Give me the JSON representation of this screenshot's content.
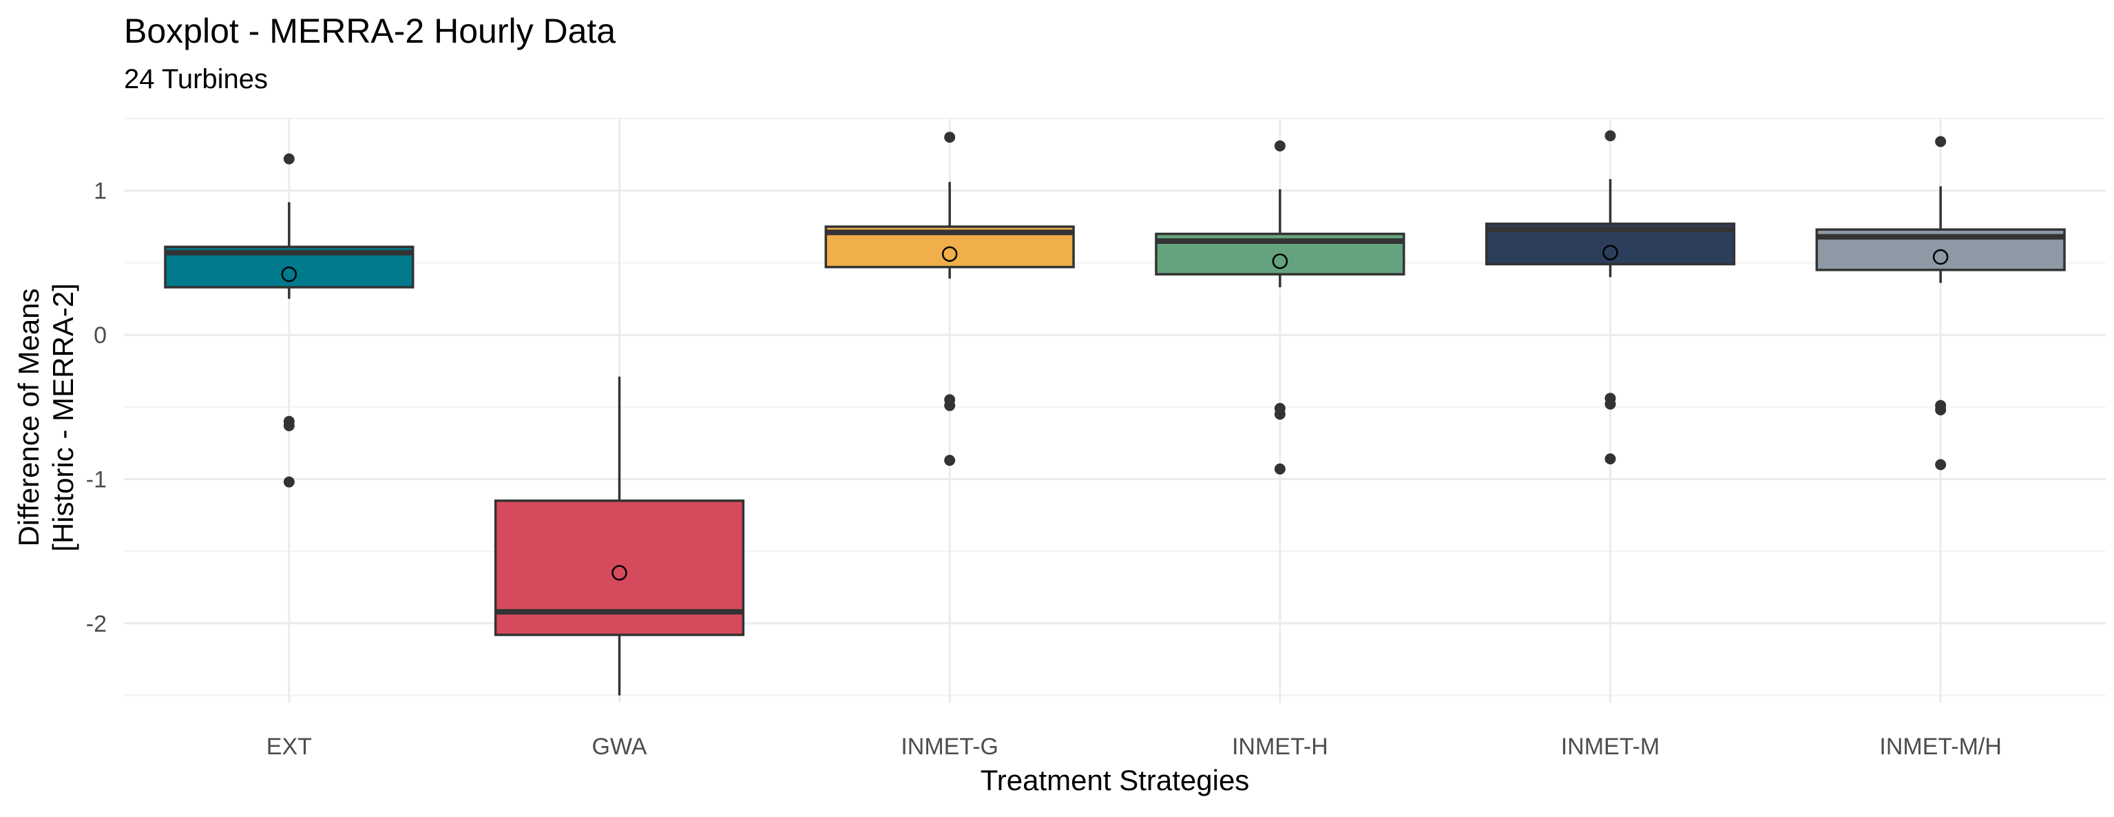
{
  "chart_data": {
    "type": "boxplot",
    "title": "Boxplot - MERRA-2 Hourly Data",
    "subtitle": "24 Turbines",
    "xlabel": "Treatment Strategies",
    "ylabel_lines": [
      "Difference of Means",
      "[Historic - MERRA-2]"
    ],
    "ylim": [
      -2.55,
      1.5
    ],
    "y_ticks": [
      1,
      0,
      -1,
      -2
    ],
    "y_tick_labels": [
      "1",
      "0",
      "-1",
      "-2"
    ],
    "grid": true,
    "legend": "none",
    "categories": [
      "EXT",
      "GWA",
      "INMET-G",
      "INMET-H",
      "INMET-M",
      "INMET-M/H"
    ],
    "series": [
      {
        "category": "EXT",
        "color": "#007A8C",
        "whisker_low": 0.25,
        "q1": 0.33,
        "median": 0.57,
        "q3": 0.61,
        "whisker_high": 0.92,
        "mean": 0.42,
        "outliers": [
          1.22,
          -0.6,
          -0.63,
          -1.02
        ]
      },
      {
        "category": "GWA",
        "color": "#D64A5E",
        "whisker_low": -2.5,
        "q1": -2.08,
        "median": -1.92,
        "q3": -1.15,
        "whisker_high": -0.29,
        "mean": -1.65,
        "outliers": []
      },
      {
        "category": "INMET-G",
        "color": "#F0AF4B",
        "whisker_low": 0.39,
        "q1": 0.47,
        "median": 0.71,
        "q3": 0.75,
        "whisker_high": 1.06,
        "mean": 0.56,
        "outliers": [
          1.37,
          -0.45,
          -0.49,
          -0.87
        ]
      },
      {
        "category": "INMET-H",
        "color": "#65A37E",
        "whisker_low": 0.33,
        "q1": 0.42,
        "median": 0.65,
        "q3": 0.7,
        "whisker_high": 1.01,
        "mean": 0.51,
        "outliers": [
          1.31,
          -0.51,
          -0.55,
          -0.93
        ]
      },
      {
        "category": "INMET-M",
        "color": "#2C3E5C",
        "whisker_low": 0.4,
        "q1": 0.49,
        "median": 0.73,
        "q3": 0.77,
        "whisker_high": 1.08,
        "mean": 0.57,
        "outliers": [
          1.38,
          -0.44,
          -0.48,
          -0.86
        ]
      },
      {
        "category": "INMET-M/H",
        "color": "#8E99A6",
        "whisker_low": 0.36,
        "q1": 0.45,
        "median": 0.68,
        "q3": 0.73,
        "whisker_high": 1.03,
        "mean": 0.54,
        "outliers": [
          1.34,
          -0.49,
          -0.52,
          -0.9
        ]
      }
    ]
  }
}
